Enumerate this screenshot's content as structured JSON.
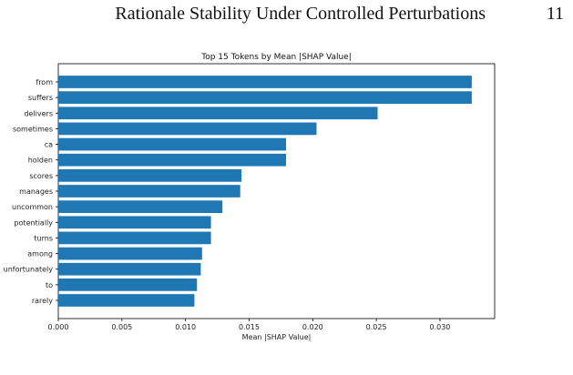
{
  "page": {
    "running_title": "Rationale Stability Under Controlled Perturbations",
    "page_number": "11"
  },
  "chart_data": {
    "type": "bar",
    "orientation": "horizontal",
    "title": "Top 15 Tokens by Mean |SHAP Value|",
    "xlabel": "Mean |SHAP Value|",
    "ylabel": "",
    "xlim": [
      0,
      0.0343
    ],
    "xticks": [
      0.0,
      0.005,
      0.01,
      0.015,
      0.02,
      0.025,
      0.03
    ],
    "xtick_labels": [
      "0.000",
      "0.005",
      "0.010",
      "0.015",
      "0.020",
      "0.025",
      "0.030"
    ],
    "categories": [
      "from",
      "suffers",
      "delivers",
      "sometimes",
      "ca",
      "holden",
      "scores",
      "manages",
      "uncommon",
      "potentially",
      "turns",
      "among",
      "unfortunately",
      "to",
      "rarely"
    ],
    "values": [
      0.0325,
      0.0325,
      0.0251,
      0.0203,
      0.0179,
      0.0179,
      0.0144,
      0.0143,
      0.0129,
      0.012,
      0.012,
      0.0113,
      0.0112,
      0.0109,
      0.0107
    ],
    "bar_color": "#1f77b4",
    "grid": false,
    "legend": "none"
  }
}
